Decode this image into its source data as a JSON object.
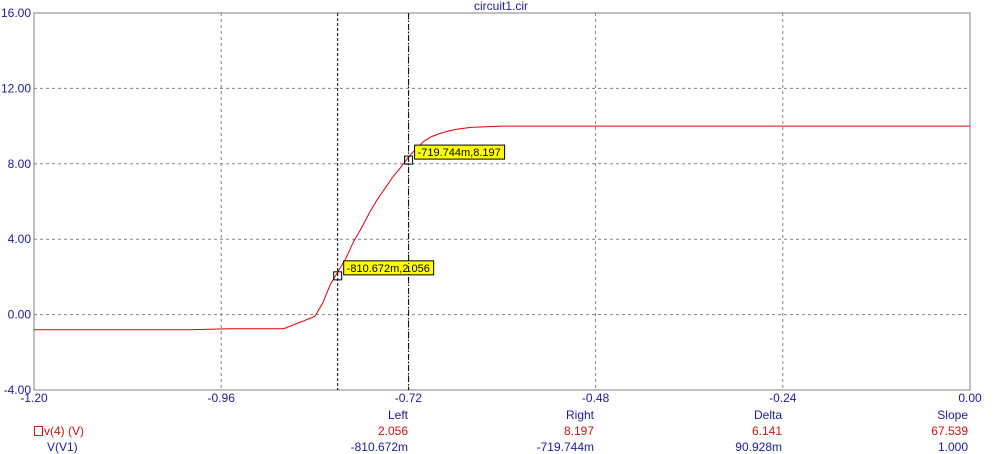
{
  "chart_data": {
    "type": "line",
    "title": "circuit1.cir",
    "xlim": [
      -1.2,
      0.0
    ],
    "ylim": [
      -4.0,
      16.0
    ],
    "x_ticks": [
      "-1.20",
      "-0.96",
      "-0.72",
      "-0.48",
      "-0.24",
      "0.00"
    ],
    "x_tick_values": [
      -1.2,
      -0.96,
      -0.72,
      -0.48,
      -0.24,
      0.0
    ],
    "y_ticks": [
      "-4.00",
      "0.00",
      "4.00",
      "8.00",
      "12.00",
      "16.00"
    ],
    "y_tick_values": [
      -4,
      0,
      4,
      8,
      12,
      16
    ],
    "grid": true,
    "series": [
      {
        "name": "v(4) (V)",
        "color": "#e00000",
        "x": [
          -1.2,
          -1.0,
          -0.95,
          -0.88,
          -0.84,
          -0.83,
          -0.82,
          -0.81,
          -0.8,
          -0.79,
          -0.78,
          -0.77,
          -0.76,
          -0.75,
          -0.74,
          -0.73,
          -0.72,
          -0.71,
          -0.7,
          -0.69,
          -0.68,
          -0.67,
          -0.66,
          -0.65,
          -0.64,
          -0.62,
          -0.6,
          -0.55,
          -0.48,
          -0.24,
          0.0
        ],
        "y": [
          -0.8,
          -0.8,
          -0.75,
          -0.75,
          -0.1,
          0.6,
          1.6,
          2.3,
          3.0,
          3.9,
          4.6,
          5.4,
          6.1,
          6.7,
          7.3,
          7.8,
          8.35,
          8.8,
          9.2,
          9.45,
          9.6,
          9.72,
          9.82,
          9.88,
          9.93,
          9.97,
          10.0,
          10.0,
          10.0,
          10.0,
          10.0
        ]
      }
    ],
    "cursors": [
      {
        "x": -0.810672,
        "y": 2.056,
        "label": "-810.672m,2.056",
        "style": "dashed"
      },
      {
        "x": -0.719744,
        "y": 8.197,
        "label": "-719.744m,8.197",
        "style": "dashdot"
      }
    ]
  },
  "cursor_table": {
    "headers": {
      "left": "Left",
      "right": "Right",
      "delta": "Delta",
      "slope": "Slope"
    },
    "rows": [
      {
        "name": "v(4) (V)",
        "left": "2.056",
        "right": "8.197",
        "delta": "6.141",
        "slope": "67.539"
      },
      {
        "name": "V(V1)",
        "left": "-810.672m",
        "right": "-719.744m",
        "delta": "90.928m",
        "slope": "1.000"
      }
    ]
  }
}
